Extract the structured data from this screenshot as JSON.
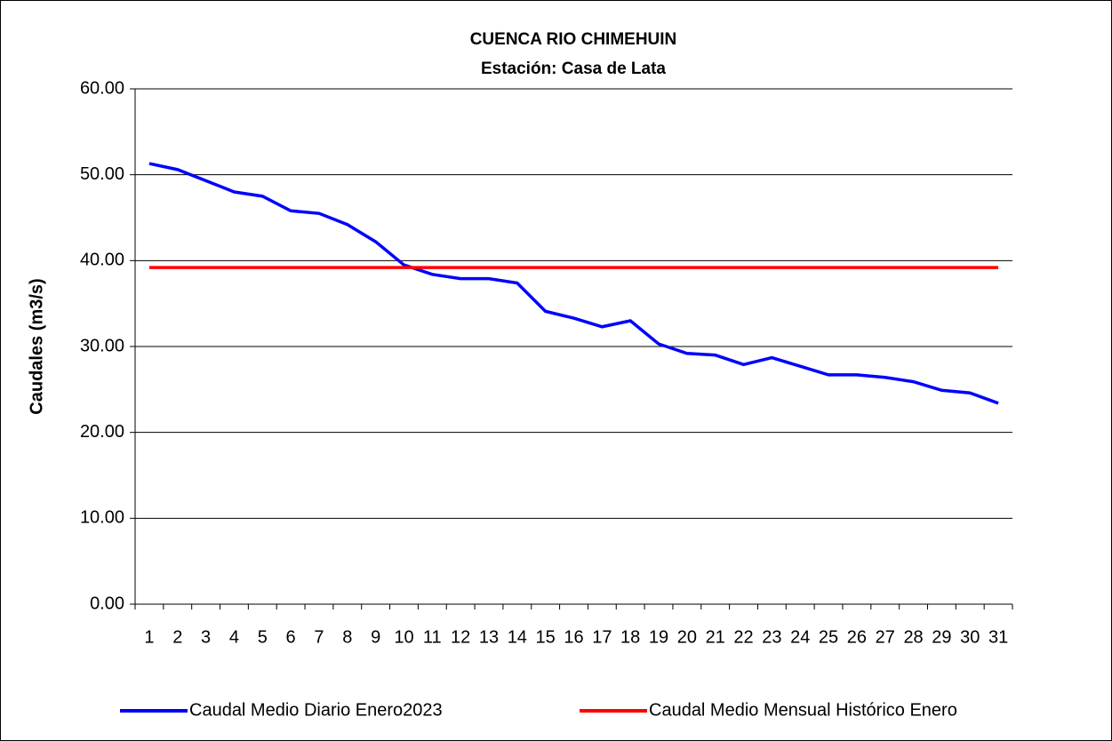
{
  "chart_data": {
    "type": "line",
    "title": "CUENCA RIO CHIMEHUIN",
    "subtitle": "Estación: Casa de Lata",
    "y_label": "Caudales (m3/s)",
    "categories": [
      "1",
      "2",
      "3",
      "4",
      "5",
      "6",
      "7",
      "8",
      "9",
      "10",
      "11",
      "12",
      "13",
      "14",
      "15",
      "16",
      "17",
      "18",
      "19",
      "20",
      "21",
      "22",
      "23",
      "24",
      "25",
      "26",
      "27",
      "28",
      "29",
      "30",
      "31"
    ],
    "series": [
      {
        "name": "Caudal Medio Diario Enero2023",
        "color": "#0000ff",
        "values": [
          51.3,
          50.6,
          49.3,
          48.0,
          47.5,
          45.8,
          45.5,
          44.2,
          42.2,
          39.5,
          38.4,
          37.9,
          37.9,
          37.4,
          34.1,
          33.3,
          32.3,
          33.0,
          30.3,
          29.2,
          29.0,
          27.9,
          28.7,
          27.7,
          26.7,
          26.7,
          26.4,
          25.9,
          24.9,
          24.6,
          23.4
        ]
      },
      {
        "name": "Caudal Medio Mensual Histórico Enero",
        "color": "#ff0000",
        "values": [
          39.2,
          39.2,
          39.2,
          39.2,
          39.2,
          39.2,
          39.2,
          39.2,
          39.2,
          39.2,
          39.2,
          39.2,
          39.2,
          39.2,
          39.2,
          39.2,
          39.2,
          39.2,
          39.2,
          39.2,
          39.2,
          39.2,
          39.2,
          39.2,
          39.2,
          39.2,
          39.2,
          39.2,
          39.2,
          39.2,
          39.2
        ]
      }
    ],
    "ylim": [
      0,
      60
    ],
    "yticks": [
      {
        "value": 0,
        "label": "0.00"
      },
      {
        "value": 10,
        "label": "10.00"
      },
      {
        "value": 20,
        "label": "20.00"
      },
      {
        "value": 30,
        "label": "30.00"
      },
      {
        "value": 40,
        "label": "40.00"
      },
      {
        "value": 50,
        "label": "50.00"
      },
      {
        "value": 60,
        "label": "60.00"
      }
    ],
    "grid": true,
    "legend": "bottom"
  }
}
